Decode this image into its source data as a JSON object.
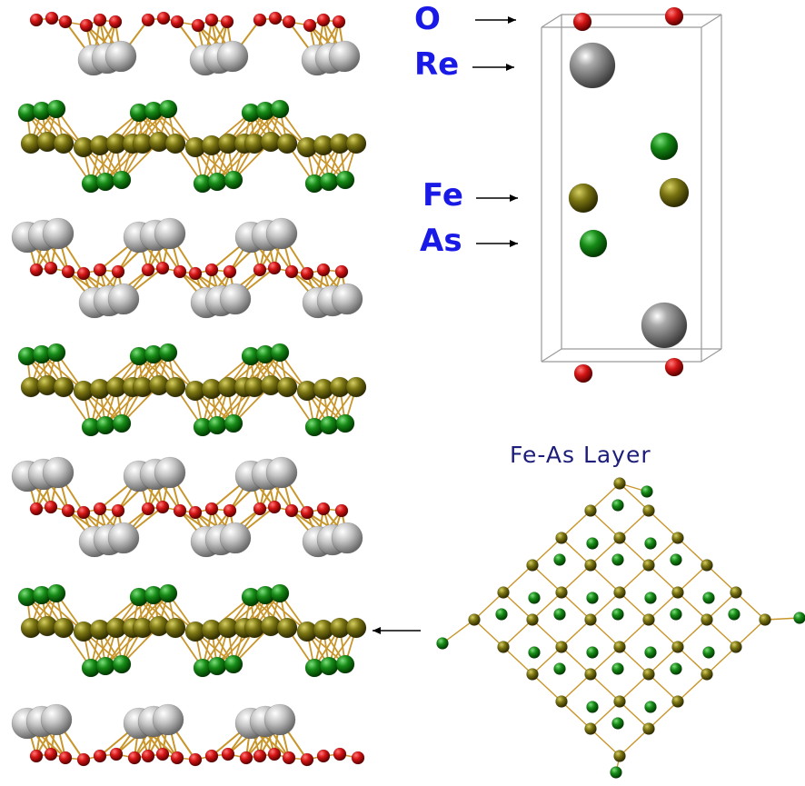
{
  "labels": {
    "o": "O",
    "re": "Re",
    "fe": "Fe",
    "as": "As"
  },
  "layer_title": "Fe-As Layer",
  "atom_colors": {
    "o": "#c80f0f",
    "re": "#b9b9b9",
    "fe": "#6f6a10",
    "as": "#138013",
    "bond": "#c9962c",
    "cell": "#9a9a9a",
    "label": "#1a1ae6"
  },
  "stack_layers": [
    "ReO",
    "FeAs",
    "ReO",
    "FeAs",
    "ReO",
    "FeAs",
    "ReO"
  ],
  "unit_cell_atoms": [
    "O",
    "O",
    "Re",
    "As",
    "Fe",
    "Fe",
    "As",
    "Re",
    "O",
    "O"
  ],
  "lattice_grid": [
    6,
    6
  ]
}
